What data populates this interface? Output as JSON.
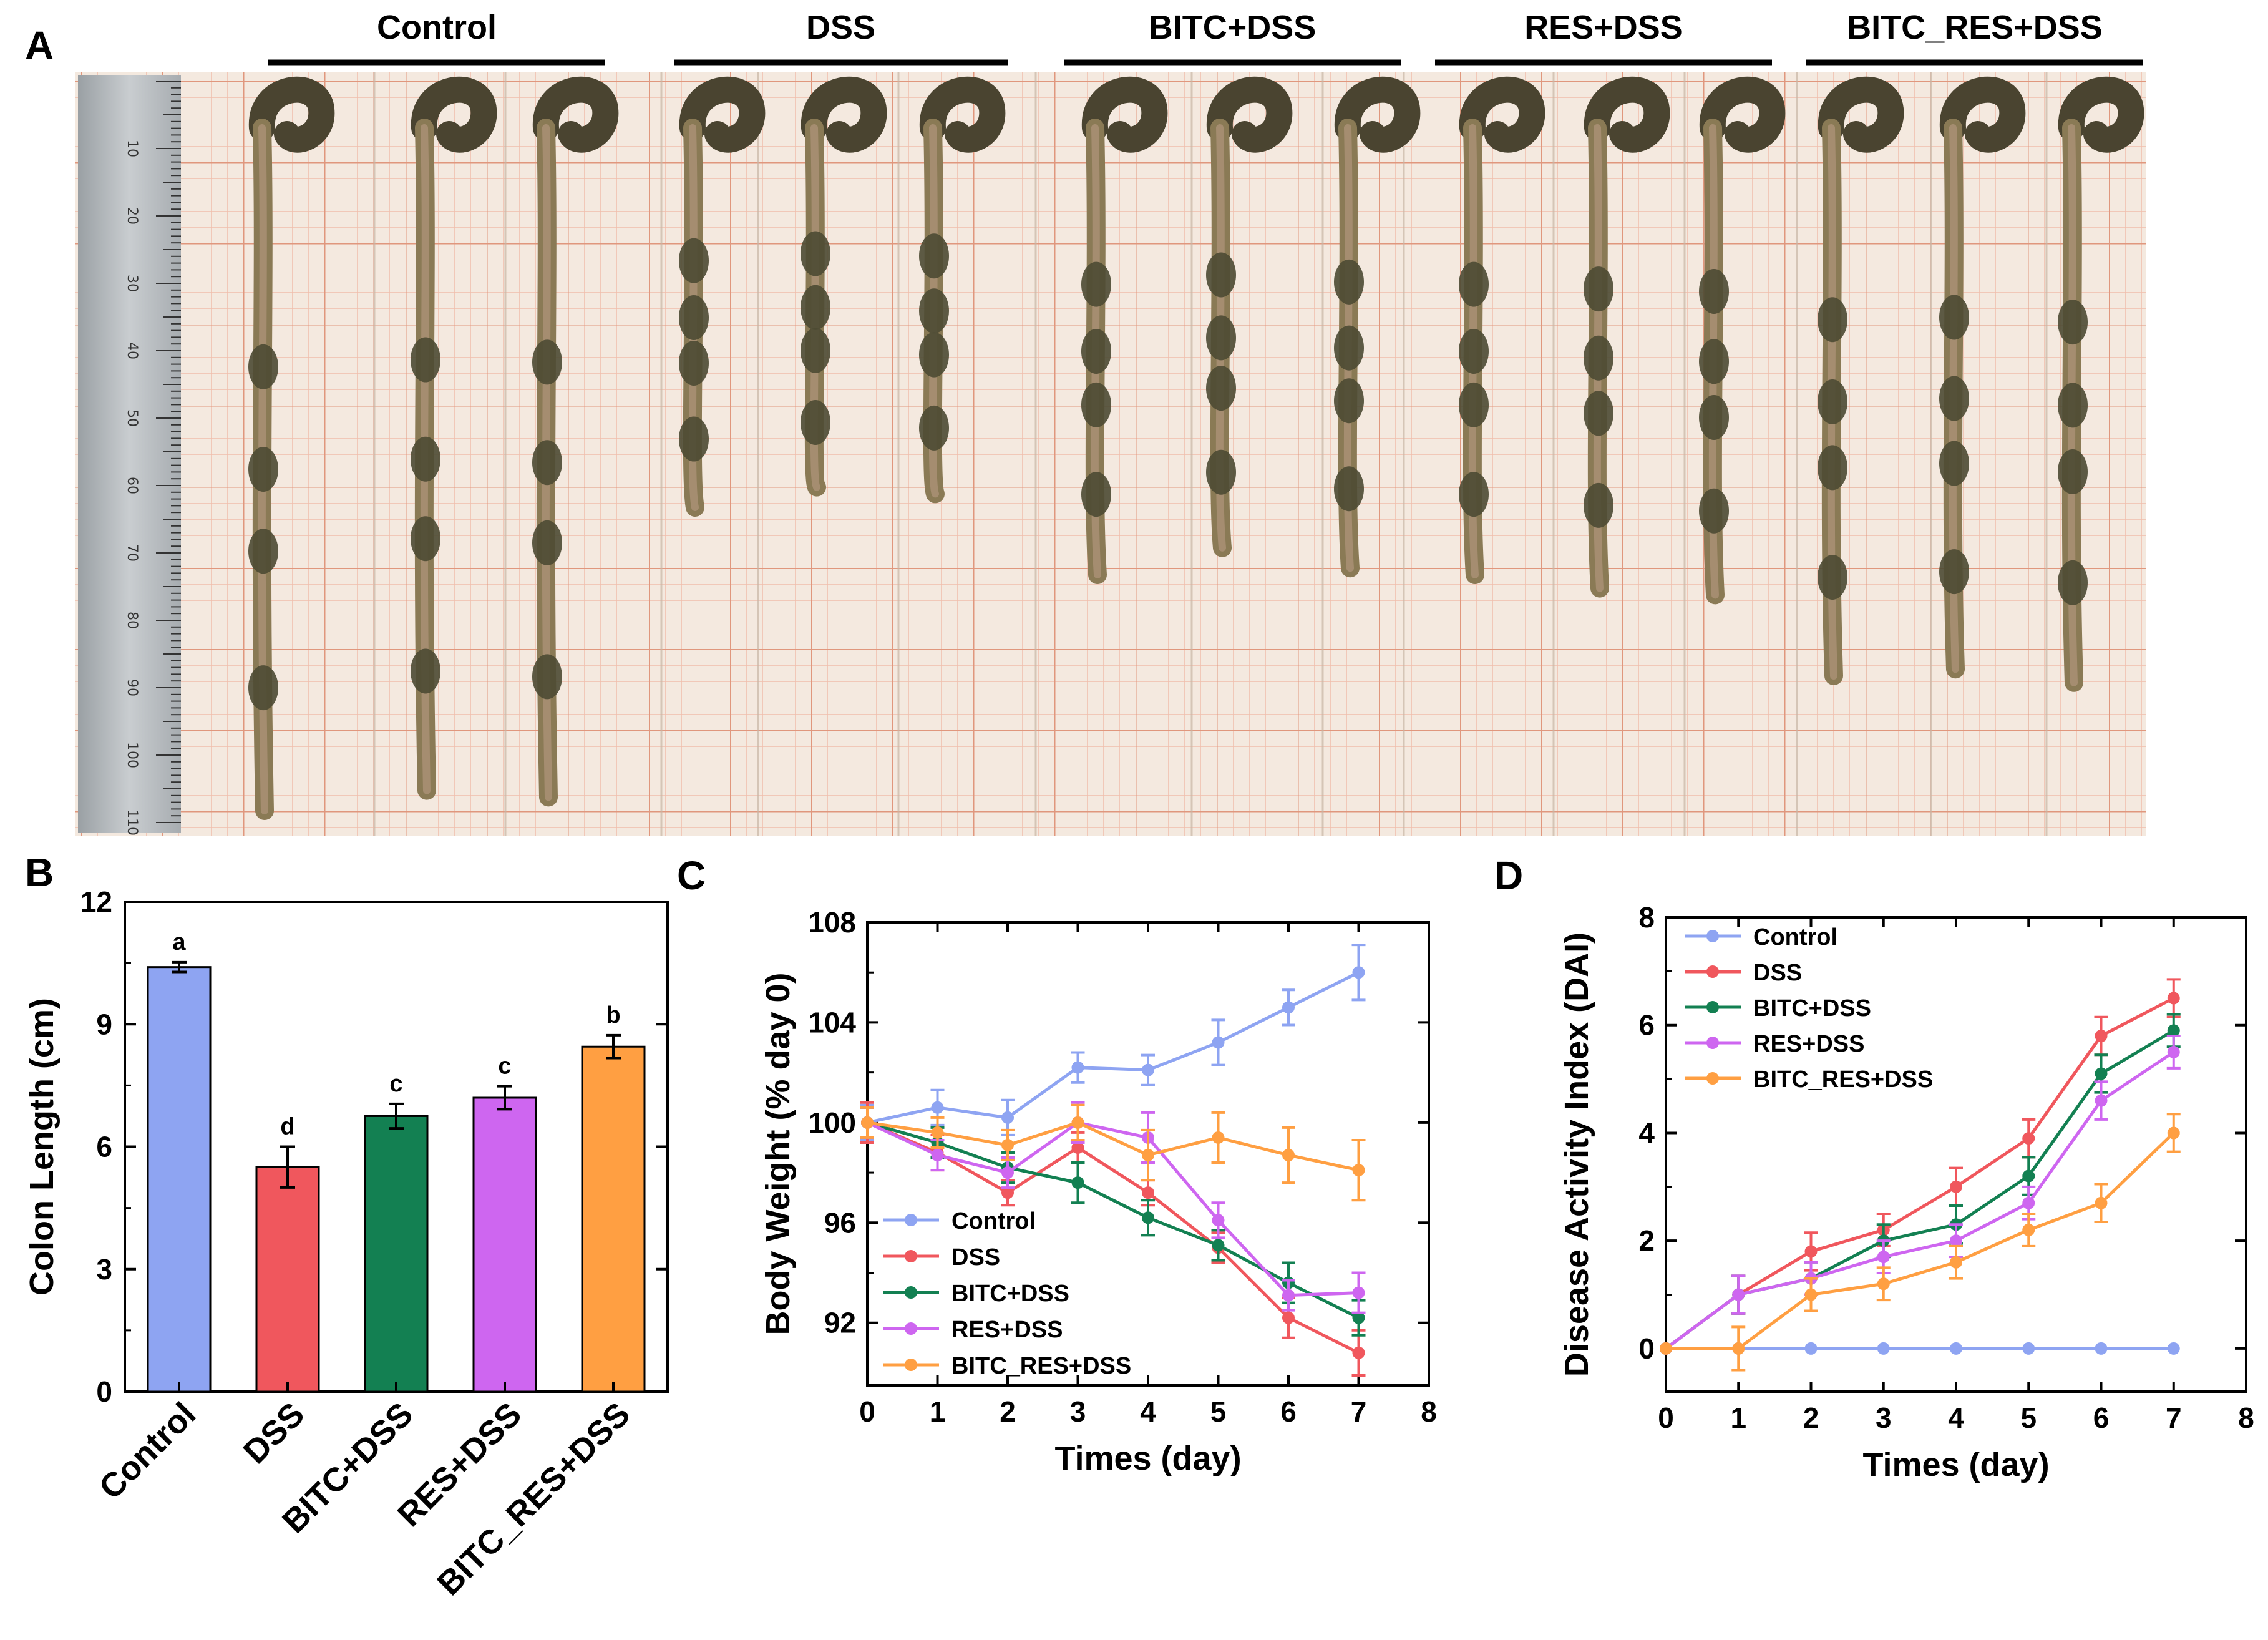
{
  "panel_a": {
    "label": "A",
    "groups": [
      "Control",
      "DSS",
      "BITC+DSS",
      "RES+DSS",
      "BITC_RES+DSS"
    ],
    "ruler_ticks": [
      "10",
      "20",
      "30",
      "40",
      "50",
      "60",
      "70",
      "80",
      "90",
      "100",
      "110"
    ],
    "colon_lengths_visual": [
      10.5,
      10.2,
      10.3,
      6.0,
      5.7,
      5.8,
      7.0,
      6.6,
      6.9,
      7.0,
      7.2,
      7.3,
      8.5,
      8.4,
      8.6
    ]
  },
  "colors": {
    "control": "#8ea4f2",
    "dss": "#f0575d",
    "bitc_dss": "#138052",
    "res_dss": "#ce66f0",
    "bitc_res_dss": "#ff9f42"
  },
  "chart_data": [
    {
      "panel": "B",
      "type": "bar",
      "categories": [
        "Control",
        "DSS",
        "BITC+DSS",
        "RES+DSS",
        "BITC_RES+DSS"
      ],
      "values": [
        10.4,
        5.5,
        6.75,
        7.2,
        8.45
      ],
      "errors": [
        0.12,
        0.5,
        0.3,
        0.28,
        0.28
      ],
      "letters": [
        "a",
        "d",
        "c",
        "c",
        "b"
      ],
      "xlabel": "",
      "ylabel": "Colon Length (cm)",
      "ylim": [
        0,
        12
      ],
      "yticks": [
        0,
        3,
        6,
        9,
        12
      ]
    },
    {
      "panel": "C",
      "type": "line",
      "x": [
        0,
        1,
        2,
        3,
        4,
        5,
        6,
        7
      ],
      "xlabel": "Times (day)",
      "ylabel": "Body Weight (% day 0)",
      "xlim": [
        0,
        8
      ],
      "ylim": [
        89.5,
        108
      ],
      "xticks": [
        0,
        1,
        2,
        3,
        4,
        5,
        6,
        7,
        8
      ],
      "yticks": [
        92,
        96,
        100,
        104,
        108
      ],
      "legend_position": "bottom-left",
      "series": [
        {
          "name": "Control",
          "values": [
            100,
            100.6,
            100.2,
            102.2,
            102.1,
            103.2,
            104.6,
            106.0
          ],
          "errors": [
            0.7,
            0.7,
            0.7,
            0.6,
            0.6,
            0.9,
            0.7,
            1.1
          ]
        },
        {
          "name": "DSS",
          "values": [
            100,
            98.8,
            97.2,
            99.0,
            97.2,
            95.0,
            92.2,
            90.8
          ],
          "errors": [
            0.8,
            0.7,
            0.5,
            0.6,
            0.5,
            0.6,
            0.8,
            0.9
          ]
        },
        {
          "name": "BITC+DSS",
          "values": [
            100,
            99.2,
            98.2,
            97.6,
            96.2,
            95.1,
            93.6,
            92.2
          ],
          "errors": [
            0.6,
            0.6,
            0.6,
            0.8,
            0.7,
            0.6,
            0.8,
            0.7
          ]
        },
        {
          "name": "RES+DSS",
          "values": [
            100,
            98.7,
            98.0,
            100.0,
            99.4,
            96.1,
            93.1,
            93.2
          ],
          "errors": [
            0.6,
            0.6,
            0.6,
            0.8,
            1.0,
            0.7,
            0.6,
            0.8
          ]
        },
        {
          "name": "BITC_RES+DSS",
          "values": [
            100,
            99.6,
            99.1,
            100.0,
            98.7,
            99.4,
            98.7,
            98.1
          ],
          "errors": [
            0.6,
            0.6,
            0.6,
            0.7,
            1.0,
            1.0,
            1.1,
            1.2
          ]
        }
      ]
    },
    {
      "panel": "D",
      "type": "line",
      "x": [
        0,
        1,
        2,
        3,
        4,
        5,
        6,
        7
      ],
      "xlabel": "Times (day)",
      "ylabel": "Disease Activity Index (DAI)",
      "xlim": [
        0,
        8
      ],
      "ylim": [
        -0.8,
        8
      ],
      "xticks": [
        0,
        1,
        2,
        3,
        4,
        5,
        6,
        7,
        8
      ],
      "yticks": [
        0,
        2,
        4,
        6,
        8
      ],
      "legend_position": "top-left",
      "series": [
        {
          "name": "Control",
          "values": [
            0,
            0,
            0,
            0,
            0,
            0,
            0,
            0
          ],
          "errors": [
            0,
            0,
            0,
            0,
            0,
            0,
            0,
            0
          ]
        },
        {
          "name": "DSS",
          "values": [
            0,
            1.0,
            1.8,
            2.2,
            3.0,
            3.9,
            5.8,
            6.5
          ],
          "errors": [
            0,
            0.35,
            0.35,
            0.3,
            0.35,
            0.35,
            0.35,
            0.35
          ]
        },
        {
          "name": "BITC+DSS",
          "values": [
            0,
            1.0,
            1.3,
            2.0,
            2.3,
            3.2,
            5.1,
            5.9
          ],
          "errors": [
            0,
            0.35,
            0.3,
            0.3,
            0.35,
            0.35,
            0.35,
            0.3
          ]
        },
        {
          "name": "RES+DSS",
          "values": [
            0,
            1.0,
            1.3,
            1.7,
            2.0,
            2.7,
            4.6,
            5.5
          ],
          "errors": [
            0,
            0.35,
            0.3,
            0.3,
            0.3,
            0.3,
            0.35,
            0.3
          ]
        },
        {
          "name": "BITC_RES+DSS",
          "values": [
            0,
            0,
            1.0,
            1.2,
            1.6,
            2.2,
            2.7,
            4.0
          ],
          "errors": [
            0,
            0.4,
            0.3,
            0.3,
            0.3,
            0.3,
            0.35,
            0.35
          ]
        }
      ]
    }
  ]
}
